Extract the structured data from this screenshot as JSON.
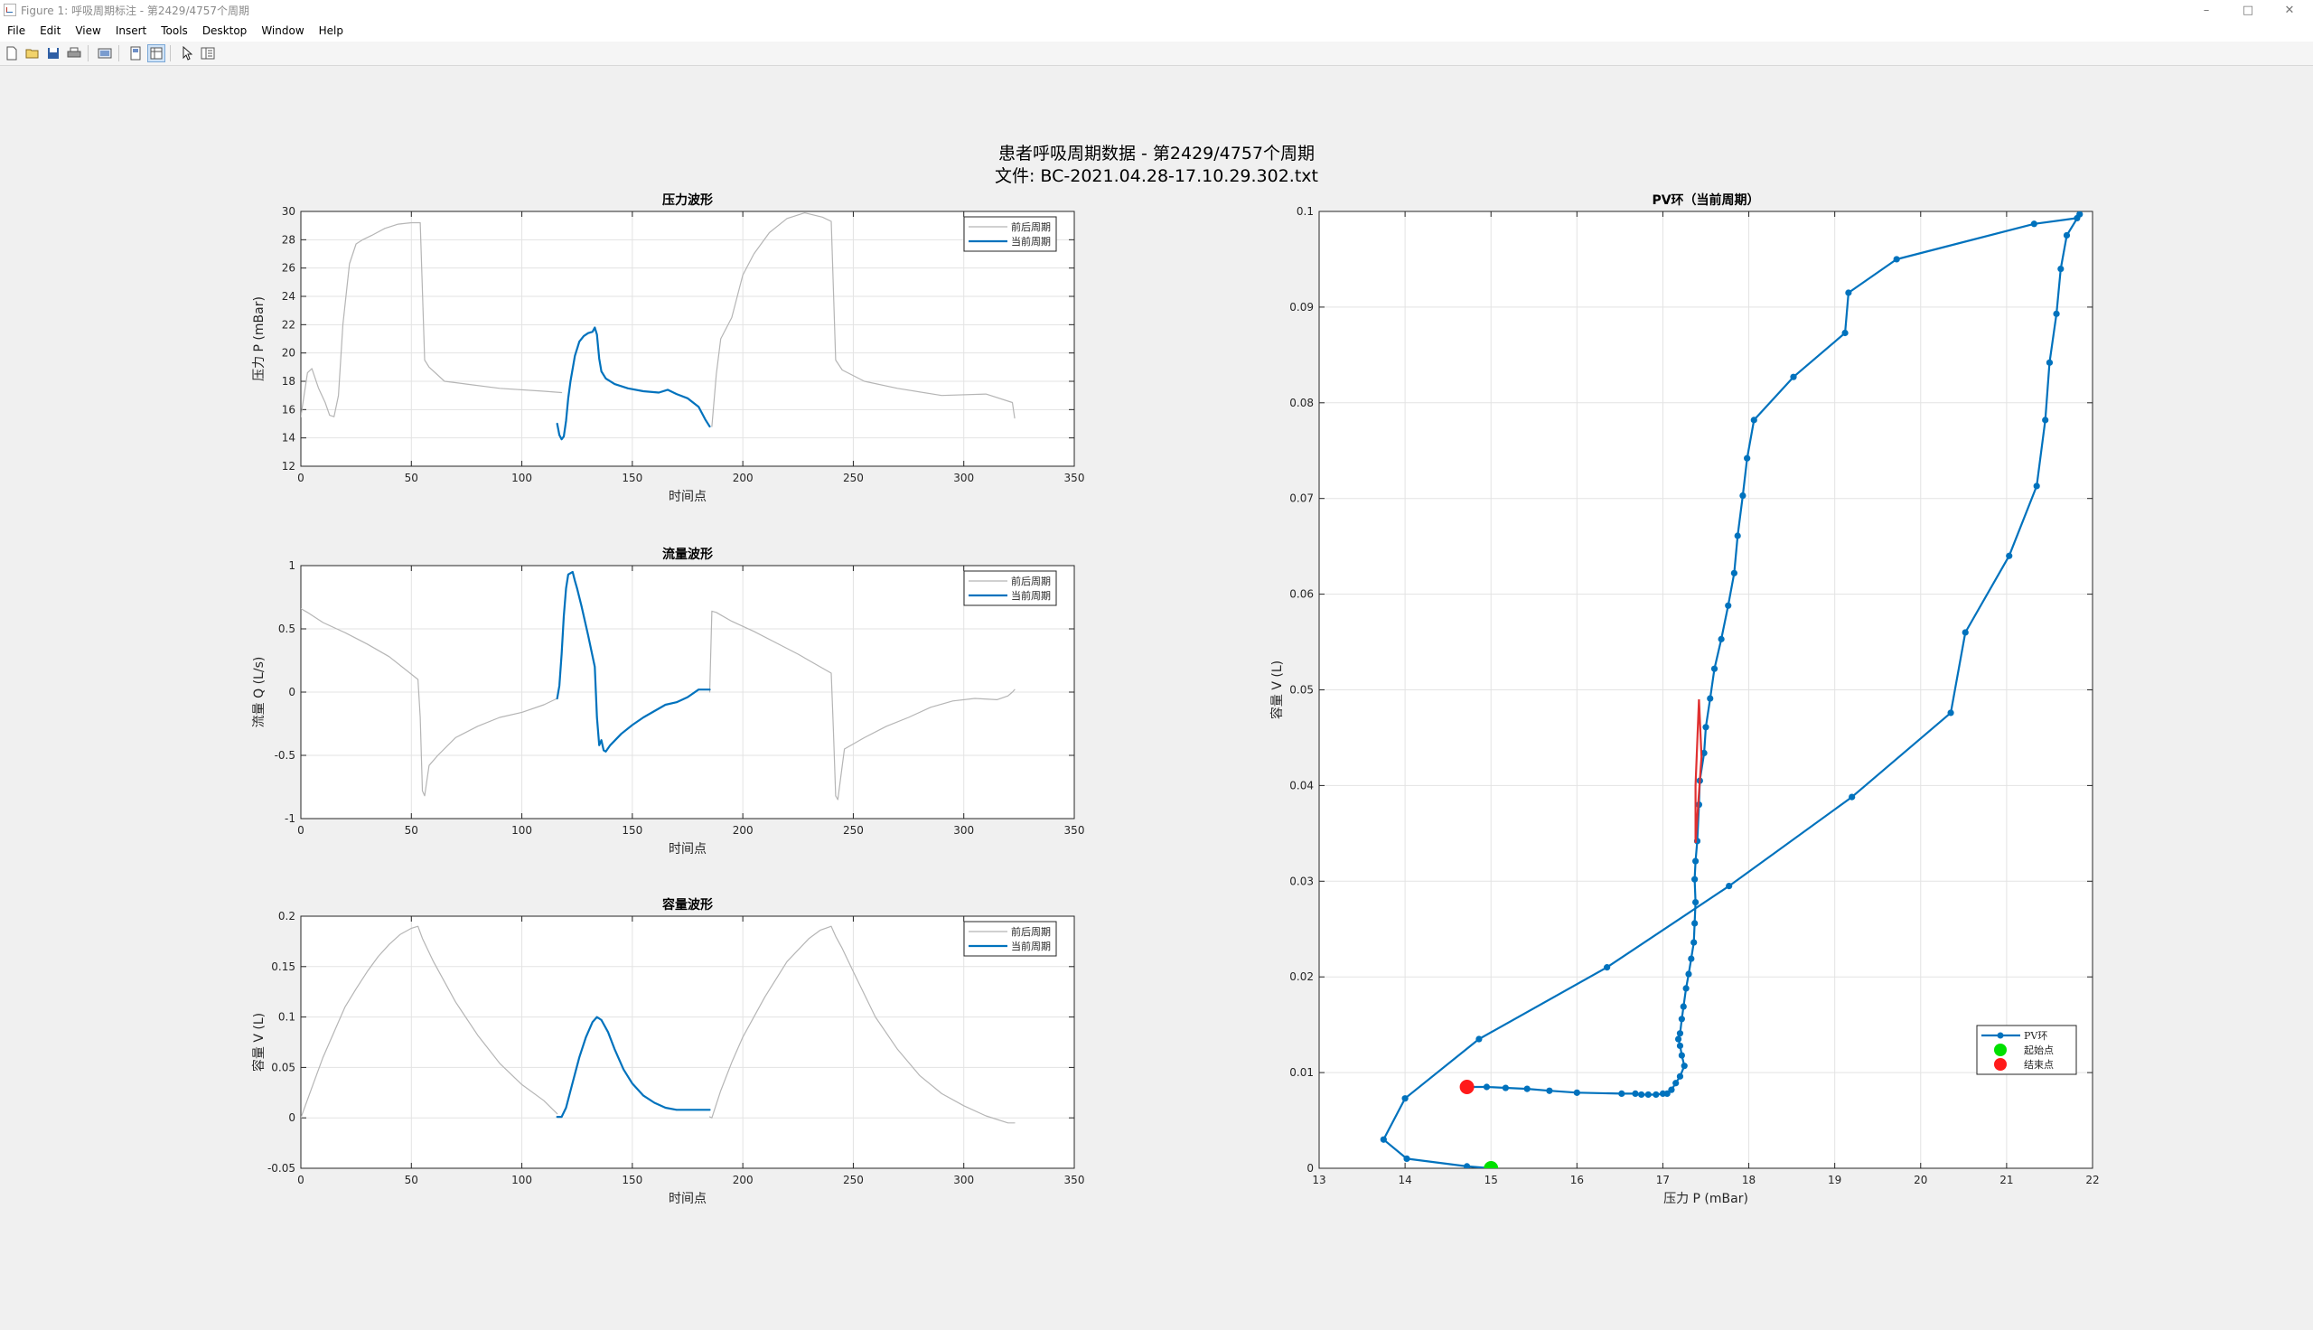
{
  "window": {
    "title": "Figure 1: 呼吸周期标注 - 第2429/4757个周期",
    "controls": [
      "–",
      "□",
      "✕"
    ]
  },
  "menu": [
    "File",
    "Edit",
    "View",
    "Insert",
    "Tools",
    "Desktop",
    "Window",
    "Help"
  ],
  "toolbar": {
    "icons": [
      "new-figure-icon",
      "open-file-icon",
      "save-icon",
      "print-icon",
      "print-preview-icon",
      "dock-icon",
      "property-editor-icon",
      "pointer-icon",
      "plot-browser-icon"
    ]
  },
  "figure": {
    "title_line1": "患者呼吸周期数据 - 第2429/4757个周期",
    "title_line2": "文件: BC-2021.04.28-17.10.29.302.txt"
  },
  "colors": {
    "current": "#0072BD",
    "previous": "#b5b5b5",
    "start": "#00e000",
    "end": "#ff1a1a",
    "tangent": "#e03030"
  },
  "chart_data": [
    {
      "type": "line",
      "title": "压力波形",
      "xlabel": "时间点",
      "ylabel": "压力 P (mBar)",
      "xlim": [
        0,
        350
      ],
      "ylim": [
        12,
        30
      ],
      "xticks": [
        0,
        50,
        100,
        150,
        200,
        250,
        300,
        350
      ],
      "yticks": [
        12,
        14,
        16,
        18,
        20,
        22,
        24,
        26,
        28,
        30
      ],
      "grid": true,
      "legend_position": "top-right",
      "series": [
        {
          "name": "前后周期",
          "color": "#b5b5b5",
          "width": 1.2,
          "x": [
            0,
            3,
            5,
            8,
            11,
            13,
            15,
            17,
            19,
            22,
            25,
            28,
            32,
            38,
            44,
            50,
            54,
            56,
            58,
            65,
            75,
            90,
            110,
            118
          ],
          "y": [
            15.5,
            18.6,
            18.9,
            17.5,
            16.5,
            15.6,
            15.5,
            17,
            22,
            26.3,
            27.7,
            28,
            28.3,
            28.8,
            29.1,
            29.2,
            29.2,
            19.5,
            19,
            18,
            17.8,
            17.5,
            17.3,
            17.2
          ]
        },
        {
          "name": "前后周期",
          "color": "#b5b5b5",
          "width": 1.2,
          "x": [
            186,
            188,
            190,
            195,
            200,
            205,
            212,
            220,
            228,
            236,
            240,
            242,
            245,
            255,
            270,
            290,
            310,
            322,
            323
          ],
          "y": [
            14.8,
            18.5,
            21,
            22.5,
            25.5,
            27,
            28.5,
            29.5,
            29.9,
            29.6,
            29.3,
            19.5,
            18.8,
            18,
            17.5,
            17,
            17.1,
            16.5,
            15.4
          ]
        },
        {
          "name": "当前周期",
          "color": "#0072BD",
          "width": 2.2,
          "x": [
            116,
            117,
            118,
            119,
            120,
            121,
            122,
            124,
            126,
            128,
            130,
            132,
            133,
            134,
            135,
            136,
            138,
            142,
            148,
            155,
            162,
            166,
            170,
            175,
            180,
            183,
            185
          ],
          "y": [
            15,
            14.2,
            13.9,
            14.1,
            15.2,
            16.8,
            18,
            19.8,
            20.8,
            21.2,
            21.4,
            21.5,
            21.8,
            21.3,
            19.6,
            18.7,
            18.2,
            17.8,
            17.5,
            17.3,
            17.2,
            17.4,
            17.1,
            16.8,
            16.2,
            15.3,
            14.8
          ]
        }
      ]
    },
    {
      "type": "line",
      "title": "流量波形",
      "xlabel": "时间点",
      "ylabel": "流量 Q (L/s)",
      "xlim": [
        0,
        350
      ],
      "ylim": [
        -1,
        1
      ],
      "xticks": [
        0,
        50,
        100,
        150,
        200,
        250,
        300,
        350
      ],
      "yticks": [
        -1,
        -0.5,
        0,
        0.5,
        1
      ],
      "grid": true,
      "legend_position": "top-right",
      "series": [
        {
          "name": "前后周期",
          "color": "#b5b5b5",
          "width": 1.2,
          "x": [
            0,
            3,
            10,
            20,
            30,
            40,
            53,
            54,
            55,
            56,
            58,
            62,
            70,
            80,
            90,
            100,
            110,
            116
          ],
          "y": [
            0.66,
            0.63,
            0.55,
            0.47,
            0.38,
            0.28,
            0.1,
            -0.2,
            -0.78,
            -0.82,
            -0.58,
            -0.5,
            -0.36,
            -0.27,
            -0.2,
            -0.16,
            -0.1,
            -0.05
          ]
        },
        {
          "name": "前后周期",
          "color": "#b5b5b5",
          "width": 1.2,
          "x": [
            185,
            186,
            188,
            195,
            205,
            215,
            225,
            235,
            240,
            241,
            242,
            243,
            246,
            255,
            265,
            275,
            285,
            295,
            305,
            315,
            320,
            322,
            323
          ],
          "y": [
            0.0,
            0.64,
            0.63,
            0.56,
            0.48,
            0.39,
            0.3,
            0.2,
            0.15,
            -0.3,
            -0.82,
            -0.85,
            -0.45,
            -0.36,
            -0.27,
            -0.2,
            -0.12,
            -0.07,
            -0.05,
            -0.06,
            -0.03,
            0,
            0.02
          ]
        },
        {
          "name": "当前周期",
          "color": "#0072BD",
          "width": 2.2,
          "x": [
            116,
            117,
            118,
            119,
            120,
            121,
            123,
            124,
            125,
            127,
            130,
            133,
            134,
            135,
            136,
            137,
            138,
            140,
            145,
            150,
            155,
            160,
            165,
            170,
            175,
            180,
            185
          ],
          "y": [
            -0.05,
            0.05,
            0.3,
            0.6,
            0.82,
            0.93,
            0.95,
            0.88,
            0.82,
            0.68,
            0.45,
            0.2,
            -0.2,
            -0.42,
            -0.38,
            -0.46,
            -0.47,
            -0.42,
            -0.33,
            -0.26,
            -0.2,
            -0.15,
            -0.1,
            -0.08,
            -0.04,
            0.02,
            0.02
          ]
        }
      ]
    },
    {
      "type": "line",
      "title": "容量波形",
      "xlabel": "时间点",
      "ylabel": "容量 V (L)",
      "xlim": [
        0,
        350
      ],
      "ylim": [
        -0.05,
        0.2
      ],
      "xticks": [
        0,
        50,
        100,
        150,
        200,
        250,
        300,
        350
      ],
      "yticks": [
        -0.05,
        0,
        0.05,
        0.1,
        0.15,
        0.2
      ],
      "grid": true,
      "legend_position": "top-right",
      "series": [
        {
          "name": "前后周期",
          "color": "#b5b5b5",
          "width": 1.2,
          "x": [
            0,
            5,
            10,
            15,
            20,
            25,
            30,
            35,
            40,
            45,
            50,
            53,
            55,
            60,
            70,
            80,
            90,
            100,
            110,
            116
          ],
          "y": [
            0,
            0.03,
            0.06,
            0.085,
            0.11,
            0.128,
            0.145,
            0.16,
            0.172,
            0.182,
            0.188,
            0.19,
            0.178,
            0.155,
            0.115,
            0.082,
            0.054,
            0.033,
            0.017,
            0.004
          ]
        },
        {
          "name": "前后周期",
          "color": "#b5b5b5",
          "width": 1.2,
          "x": [
            185,
            186,
            190,
            195,
            200,
            210,
            220,
            230,
            235,
            240,
            242,
            245,
            250,
            260,
            270,
            280,
            290,
            300,
            310,
            320,
            323
          ],
          "y": [
            0.001,
            0.0,
            0.027,
            0.055,
            0.08,
            0.12,
            0.155,
            0.178,
            0.186,
            0.19,
            0.18,
            0.168,
            0.145,
            0.1,
            0.068,
            0.042,
            0.024,
            0.012,
            0.002,
            -0.005,
            -0.005
          ]
        },
        {
          "name": "当前周期",
          "color": "#0072BD",
          "width": 2.2,
          "x": [
            116,
            118,
            120,
            123,
            126,
            129,
            132,
            134,
            136,
            139,
            142,
            146,
            150,
            155,
            160,
            165,
            170,
            175,
            180,
            185
          ],
          "y": [
            0.001,
            0.001,
            0.01,
            0.035,
            0.06,
            0.08,
            0.095,
            0.1,
            0.097,
            0.085,
            0.068,
            0.048,
            0.034,
            0.022,
            0.015,
            0.01,
            0.008,
            0.008,
            0.008,
            0.008
          ]
        }
      ]
    },
    {
      "type": "line",
      "title": "PV环（当前周期）",
      "xlabel": "压力 P (mBar)",
      "ylabel": "容量 V (L)",
      "xlim": [
        13,
        22
      ],
      "ylim": [
        0,
        0.1
      ],
      "xticks": [
        13,
        14,
        15,
        16,
        17,
        18,
        19,
        20,
        21,
        22
      ],
      "yticks": [
        0,
        0.01,
        0.02,
        0.03,
        0.04,
        0.05,
        0.06,
        0.07,
        0.08,
        0.09,
        0.1
      ],
      "grid": true,
      "legend_position": "bottom-right",
      "series": [
        {
          "name": "PV环",
          "color": "#0072BD",
          "width": 2.2,
          "markers": true,
          "x": [
            15.0,
            14.72,
            14.02,
            13.75,
            14.0,
            14.86,
            16.35,
            17.77,
            19.2,
            20.35,
            20.52,
            21.03,
            21.35,
            21.45,
            21.5,
            21.58,
            21.63,
            21.7,
            21.85,
            21.82,
            21.32,
            19.72,
            19.16,
            19.12,
            18.52,
            18.06,
            17.98,
            17.93,
            17.87,
            17.83,
            17.76,
            17.68,
            17.6,
            17.55,
            17.5,
            17.48,
            17.43,
            17.42,
            17.4,
            17.38,
            17.37,
            17.38,
            17.37,
            17.36,
            17.33,
            17.3,
            17.27,
            17.24,
            17.22,
            17.2,
            17.18,
            17.2,
            17.22,
            17.25,
            17.2,
            17.15,
            17.1,
            17.05,
            17.0,
            16.92,
            16.83,
            16.75,
            16.68,
            16.52,
            16.0,
            15.68,
            15.42,
            15.17,
            14.95,
            14.72
          ],
          "y": [
            0.0,
            0.0002,
            0.001,
            0.003,
            0.0073,
            0.0135,
            0.021,
            0.0295,
            0.0388,
            0.0476,
            0.056,
            0.064,
            0.0713,
            0.0782,
            0.0842,
            0.0893,
            0.094,
            0.0975,
            0.0997,
            0.0993,
            0.0987,
            0.095,
            0.0915,
            0.0873,
            0.0827,
            0.0782,
            0.0742,
            0.0703,
            0.0661,
            0.0622,
            0.0588,
            0.0553,
            0.0522,
            0.0491,
            0.0461,
            0.0434,
            0.0405,
            0.038,
            0.0342,
            0.0321,
            0.0302,
            0.0278,
            0.0256,
            0.0236,
            0.0219,
            0.0203,
            0.0188,
            0.0169,
            0.0156,
            0.0141,
            0.0135,
            0.0128,
            0.0118,
            0.0107,
            0.0096,
            0.0089,
            0.0082,
            0.0078,
            0.0078,
            0.0077,
            0.0077,
            0.0077,
            0.0078,
            0.0078,
            0.0079,
            0.0081,
            0.0083,
            0.0084,
            0.0085,
            0.0085
          ]
        }
      ],
      "start_point": {
        "name": "起始点",
        "x": 15.0,
        "y": 0.0,
        "color": "#00e000"
      },
      "end_point": {
        "name": "结束点",
        "x": 14.72,
        "y": 0.0085,
        "color": "#ff1a1a"
      },
      "tangent_line": {
        "color": "#e03030",
        "x": [
          17.42,
          17.38,
          17.38,
          17.45,
          17.42
        ],
        "y": [
          0.049,
          0.04,
          0.034,
          0.043,
          0.049
        ]
      }
    }
  ]
}
